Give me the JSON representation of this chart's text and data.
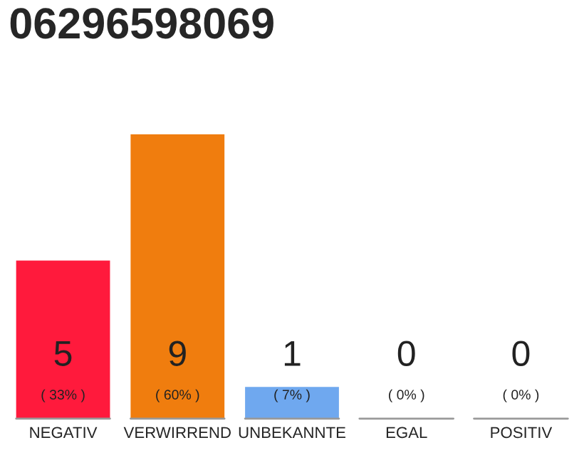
{
  "chart_data": {
    "type": "bar",
    "title": "06296598069",
    "categories": [
      "NEGATIV",
      "VERWIRREND",
      "UNBEKANNTE",
      "EGAL",
      "POSITIV"
    ],
    "values": [
      5,
      9,
      1,
      0,
      0
    ],
    "colors": [
      "#ff1a3c",
      "#f07d0e",
      "#6fa8ef",
      "#cccccc",
      "#cccccc"
    ],
    "value_labels": [
      "5\n( 33% )",
      "9\n( 60% )",
      "1\n( 7% )",
      "0\n( 0% )",
      "0\n( 0% )"
    ],
    "grid": false,
    "legend": false
  }
}
